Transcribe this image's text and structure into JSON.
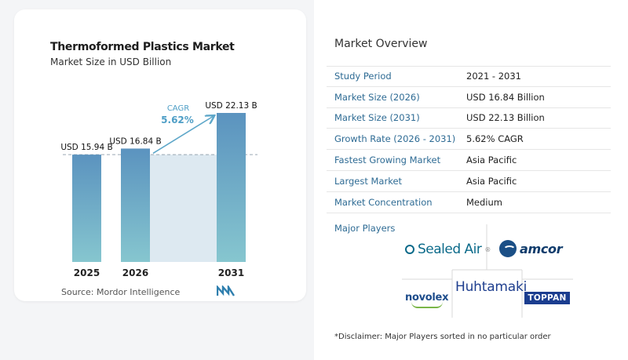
{
  "chart_data": {
    "type": "bar",
    "title": "Thermoformed Plastics Market",
    "subtitle": "Market Size in USD Billion",
    "categories": [
      "2025",
      "2026",
      "2031"
    ],
    "values": [
      15.94,
      16.84,
      22.13
    ],
    "value_labels": [
      "USD 15.94 B",
      "USD 16.84 B",
      "USD 22.13 B"
    ],
    "cagr_label": "CAGR",
    "cagr_value": "5.62%",
    "ylim": [
      0,
      22.13
    ],
    "grid": false,
    "colors": {
      "bar_top": "#5b93bf",
      "bar_bottom": "#86c6cf",
      "band": "#dde9f1",
      "arrow": "#5ea7c9",
      "cagr_text": "#4e9ec6"
    }
  },
  "source": "Source:  Mordor Intelligence",
  "overview": {
    "title": "Market Overview",
    "rows": [
      {
        "label": "Study Period",
        "value": "2021 - 2031"
      },
      {
        "label": "Market Size (2026)",
        "value": "USD 16.84 Billion"
      },
      {
        "label": "Market Size (2031)",
        "value": "USD 22.13 Billion"
      },
      {
        "label": "Growth Rate (2026 - 2031)",
        "value": "5.62% CAGR"
      },
      {
        "label": "Fastest Growing Market",
        "value": "Asia Pacific"
      },
      {
        "label": "Largest Market",
        "value": "Asia Pacific"
      },
      {
        "label": "Market Concentration",
        "value": "Medium"
      }
    ]
  },
  "major_players": {
    "title": "Major Players",
    "logos": {
      "sealed_air": "Sealed Air",
      "amcor": "amcor",
      "huhtamaki": "Huhtamaki",
      "novolex": "novolex",
      "toppan": "TOPPAN"
    }
  },
  "disclaimer": "*Disclaimer: Major Players sorted in no particular order"
}
